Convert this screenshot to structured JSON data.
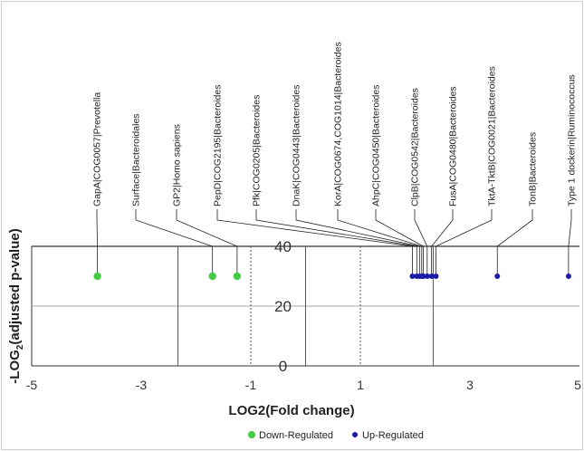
{
  "chart_data": {
    "type": "scatter",
    "xlabel": "LOG2(Fold change)",
    "ylabel_main": "-LOG",
    "ylabel_sub": "2",
    "ylabel_rest": "(adjusted p-value)",
    "xlim": [
      -5,
      5
    ],
    "ylim": [
      0,
      40
    ],
    "x_ticks": [
      -5,
      -3,
      -1,
      1,
      3,
      5
    ],
    "x_tick_labels": [
      "-5",
      "-3",
      "-1",
      "1",
      "3",
      "5"
    ],
    "y_ticks": [
      0,
      20,
      40
    ],
    "y_tick_labels": [
      "0",
      "20",
      "40"
    ],
    "legend_position": "bottom",
    "series": [
      {
        "name": "Down-Regulated",
        "color": "#44cc44",
        "points": [
          {
            "x": -3.8,
            "y": 30,
            "label": "GapA|COG0057|Prevotella"
          },
          {
            "x": -1.7,
            "y": 30,
            "label": "Surface|Bacteroidales"
          },
          {
            "x": -1.25,
            "y": 30,
            "label": "GP2|Homo sapiens"
          }
        ]
      },
      {
        "name": "Up-Regulated",
        "color": "#1a1aaa",
        "points": [
          {
            "x": 1.95,
            "y": 30,
            "label": "PepD|COG2195|Bacteroides"
          },
          {
            "x": 2.03,
            "y": 30,
            "label": "Pfk|COG0205|Bacteroides"
          },
          {
            "x": 2.08,
            "y": 30,
            "label": "DnaK|COG0443|Bacteroides"
          },
          {
            "x": 2.12,
            "y": 30,
            "label": "KorA|COG0674,COG1014|Bacteroides"
          },
          {
            "x": 2.15,
            "y": 30,
            "label": "AhpC|COG0450|Bacteroides"
          },
          {
            "x": 2.22,
            "y": 30,
            "label": "ClpB|COG0542|Bacteroides"
          },
          {
            "x": 2.3,
            "y": 30,
            "label": "FusA|COG0480|Bacteroides"
          },
          {
            "x": 2.38,
            "y": 30,
            "label": "TktA-TktB|COG0021|Bacteroides"
          },
          {
            "x": 3.5,
            "y": 30,
            "label": "TonB|Bacteroides"
          },
          {
            "x": 4.8,
            "y": 30,
            "label": "Type 1 dockerin|Ruminococcus"
          }
        ]
      }
    ]
  }
}
